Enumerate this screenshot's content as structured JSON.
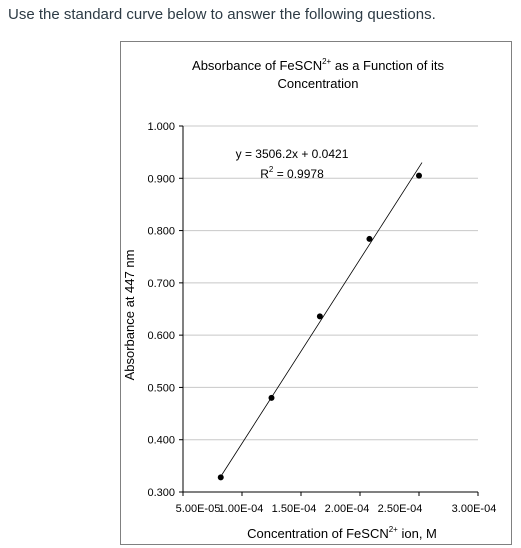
{
  "instruction": "Use the standard curve below to answer the following questions.",
  "chart_data": {
    "type": "scatter",
    "title_line1_text": "Absorbance of FeSCN",
    "title_line1_sup": "2+",
    "title_line1_tail": " as a Function of its",
    "title_line2": "Concentration",
    "xlabel_text": "Concentration of FeSCN",
    "xlabel_sup": "2+",
    "xlabel_tail": " ion, M",
    "ylabel": "Absorbance at 447 nm",
    "xlim": [
      5e-05,
      0.0003
    ],
    "ylim": [
      0.3,
      1.0
    ],
    "x_ticks": [
      5e-05,
      0.0001,
      0.00015,
      0.0002,
      0.00025,
      0.0003
    ],
    "x_tick_labels": [
      "5.00E-05",
      "1.00E-04",
      "1.50E-04",
      "2.00E-04",
      "2.50E-04",
      "3.00E-04"
    ],
    "y_ticks": [
      0.3,
      0.4,
      0.5,
      0.6,
      0.7,
      0.8,
      0.9,
      1.0
    ],
    "y_tick_labels": [
      "0.300",
      "0.400",
      "0.500",
      "0.600",
      "0.700",
      "0.800",
      "0.900",
      "1.000"
    ],
    "grid": "horizontal",
    "points": [
      {
        "x": 8.2e-05,
        "y": 0.328
      },
      {
        "x": 0.000125,
        "y": 0.48
      },
      {
        "x": 0.000166,
        "y": 0.636
      },
      {
        "x": 0.000208,
        "y": 0.784
      },
      {
        "x": 0.00025,
        "y": 0.905
      }
    ],
    "trendline": {
      "slope": 3506.2,
      "intercept": 0.0421,
      "x_from": 8.2e-05,
      "x_to": 0.00025
    },
    "equation": "y = 3506.2x + 0.0421",
    "r2_text": "R",
    "r2_sup": "2",
    "r2_value": " = 0.9978",
    "colors": {
      "axis": "#000000",
      "grid": "#c8c8c8",
      "line": "#000000",
      "marker": "#000000"
    }
  }
}
